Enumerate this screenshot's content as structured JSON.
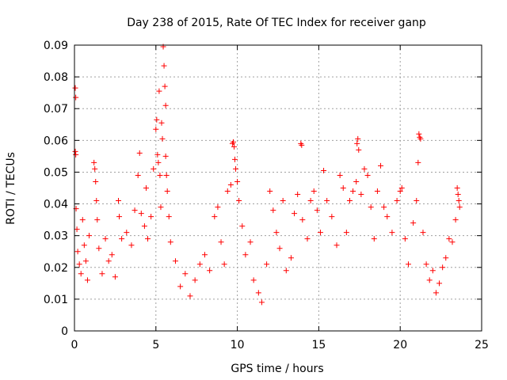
{
  "chart_data": {
    "type": "scatter",
    "title": "Day 238 of 2015, Rate Of TEC Index for receiver ganp",
    "xlabel": "GPS time / hours",
    "ylabel": "ROTI / TECUs",
    "xlim": [
      0,
      25
    ],
    "ylim": [
      0,
      0.09
    ],
    "xticks": [
      "0",
      "5",
      "10",
      "15",
      "20",
      "25"
    ],
    "yticks": [
      "0",
      "0.01",
      "0.02",
      "0.03",
      "0.04",
      "0.05",
      "0.06",
      "0.07",
      "0.08",
      "0.09"
    ],
    "grid": true,
    "marker": "+",
    "color": "#ff0000",
    "series": [
      {
        "name": "ROTI",
        "points": [
          [
            0.05,
            0.0765
          ],
          [
            0.08,
            0.0735
          ],
          [
            0.05,
            0.0565
          ],
          [
            0.08,
            0.0555
          ],
          [
            0.1,
            0.0385
          ],
          [
            0.15,
            0.032
          ],
          [
            0.2,
            0.025
          ],
          [
            0.3,
            0.021
          ],
          [
            0.4,
            0.018
          ],
          [
            0.5,
            0.035
          ],
          [
            0.6,
            0.027
          ],
          [
            0.7,
            0.022
          ],
          [
            0.8,
            0.016
          ],
          [
            0.9,
            0.03
          ],
          [
            1.2,
            0.053
          ],
          [
            1.25,
            0.051
          ],
          [
            1.3,
            0.047
          ],
          [
            1.35,
            0.041
          ],
          [
            1.4,
            0.035
          ],
          [
            1.5,
            0.026
          ],
          [
            1.7,
            0.018
          ],
          [
            1.9,
            0.029
          ],
          [
            2.1,
            0.022
          ],
          [
            2.3,
            0.024
          ],
          [
            2.5,
            0.017
          ],
          [
            2.7,
            0.041
          ],
          [
            2.75,
            0.036
          ],
          [
            2.9,
            0.029
          ],
          [
            3.2,
            0.031
          ],
          [
            3.5,
            0.027
          ],
          [
            3.7,
            0.038
          ],
          [
            3.9,
            0.049
          ],
          [
            4.0,
            0.056
          ],
          [
            4.1,
            0.037
          ],
          [
            4.3,
            0.033
          ],
          [
            4.4,
            0.045
          ],
          [
            4.5,
            0.029
          ],
          [
            4.7,
            0.036
          ],
          [
            4.85,
            0.051
          ],
          [
            5.0,
            0.0635
          ],
          [
            5.05,
            0.0665
          ],
          [
            5.1,
            0.0555
          ],
          [
            5.15,
            0.053
          ],
          [
            5.2,
            0.0755
          ],
          [
            5.25,
            0.049
          ],
          [
            5.3,
            0.039
          ],
          [
            5.35,
            0.0655
          ],
          [
            5.4,
            0.0605
          ],
          [
            5.45,
            0.0895
          ],
          [
            5.5,
            0.0835
          ],
          [
            5.55,
            0.077
          ],
          [
            5.6,
            0.071
          ],
          [
            5.6,
            0.055
          ],
          [
            5.65,
            0.049
          ],
          [
            5.7,
            0.044
          ],
          [
            5.8,
            0.036
          ],
          [
            5.9,
            0.028
          ],
          [
            6.2,
            0.022
          ],
          [
            6.5,
            0.014
          ],
          [
            6.8,
            0.018
          ],
          [
            7.1,
            0.011
          ],
          [
            7.4,
            0.016
          ],
          [
            7.7,
            0.021
          ],
          [
            8.0,
            0.024
          ],
          [
            8.3,
            0.019
          ],
          [
            8.6,
            0.036
          ],
          [
            8.8,
            0.039
          ],
          [
            9.0,
            0.028
          ],
          [
            9.2,
            0.021
          ],
          [
            9.4,
            0.044
          ],
          [
            9.6,
            0.046
          ],
          [
            9.7,
            0.059
          ],
          [
            9.75,
            0.0595
          ],
          [
            9.8,
            0.058
          ],
          [
            9.85,
            0.054
          ],
          [
            9.9,
            0.051
          ],
          [
            10.0,
            0.047
          ],
          [
            10.1,
            0.041
          ],
          [
            10.3,
            0.033
          ],
          [
            10.5,
            0.024
          ],
          [
            10.8,
            0.028
          ],
          [
            11.0,
            0.016
          ],
          [
            11.3,
            0.012
          ],
          [
            11.5,
            0.009
          ],
          [
            11.8,
            0.021
          ],
          [
            12.0,
            0.044
          ],
          [
            12.2,
            0.038
          ],
          [
            12.4,
            0.031
          ],
          [
            12.6,
            0.026
          ],
          [
            12.8,
            0.041
          ],
          [
            13.0,
            0.019
          ],
          [
            13.3,
            0.023
          ],
          [
            13.5,
            0.037
          ],
          [
            13.7,
            0.043
          ],
          [
            13.9,
            0.059
          ],
          [
            13.95,
            0.0585
          ],
          [
            14.0,
            0.035
          ],
          [
            14.3,
            0.029
          ],
          [
            14.5,
            0.041
          ],
          [
            14.7,
            0.044
          ],
          [
            14.9,
            0.038
          ],
          [
            15.1,
            0.031
          ],
          [
            15.3,
            0.0505
          ],
          [
            15.5,
            0.041
          ],
          [
            15.8,
            0.036
          ],
          [
            16.1,
            0.027
          ],
          [
            16.3,
            0.049
          ],
          [
            16.5,
            0.045
          ],
          [
            16.7,
            0.031
          ],
          [
            16.9,
            0.041
          ],
          [
            17.1,
            0.044
          ],
          [
            17.3,
            0.047
          ],
          [
            17.35,
            0.059
          ],
          [
            17.4,
            0.0605
          ],
          [
            17.45,
            0.057
          ],
          [
            17.6,
            0.043
          ],
          [
            17.8,
            0.051
          ],
          [
            18.0,
            0.049
          ],
          [
            18.2,
            0.039
          ],
          [
            18.4,
            0.029
          ],
          [
            18.6,
            0.044
          ],
          [
            18.8,
            0.052
          ],
          [
            19.0,
            0.039
          ],
          [
            19.2,
            0.036
          ],
          [
            19.5,
            0.031
          ],
          [
            19.8,
            0.041
          ],
          [
            20.0,
            0.044
          ],
          [
            20.1,
            0.045
          ],
          [
            20.3,
            0.029
          ],
          [
            20.5,
            0.021
          ],
          [
            20.8,
            0.034
          ],
          [
            21.0,
            0.041
          ],
          [
            21.1,
            0.053
          ],
          [
            21.15,
            0.062
          ],
          [
            21.2,
            0.061
          ],
          [
            21.25,
            0.0605
          ],
          [
            21.4,
            0.031
          ],
          [
            21.6,
            0.021
          ],
          [
            21.8,
            0.016
          ],
          [
            22.0,
            0.019
          ],
          [
            22.2,
            0.012
          ],
          [
            22.4,
            0.015
          ],
          [
            22.6,
            0.02
          ],
          [
            22.8,
            0.023
          ],
          [
            23.0,
            0.029
          ],
          [
            23.2,
            0.028
          ],
          [
            23.4,
            0.035
          ],
          [
            23.5,
            0.045
          ],
          [
            23.55,
            0.043
          ],
          [
            23.6,
            0.041
          ],
          [
            23.65,
            0.039
          ]
        ]
      }
    ]
  }
}
